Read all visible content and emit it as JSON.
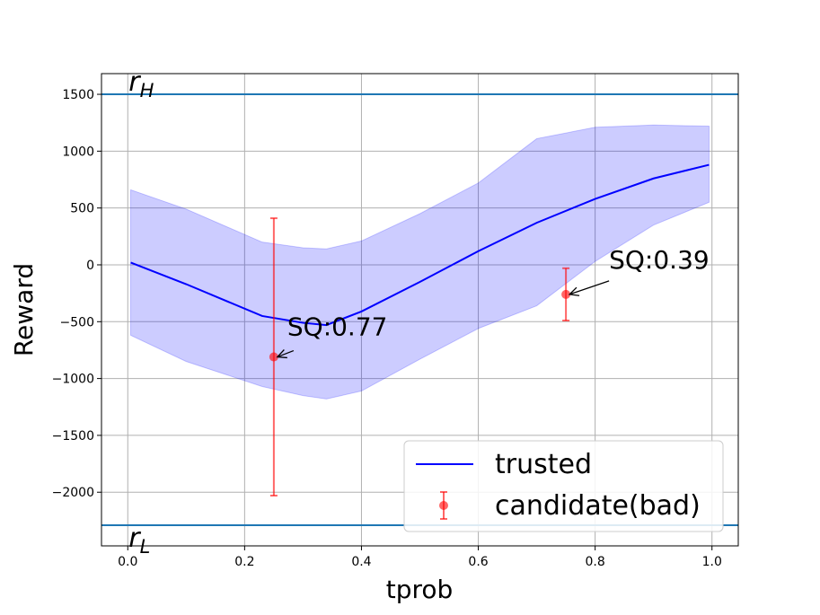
{
  "chart_data": {
    "type": "line",
    "xlabel": "tprob",
    "ylabel": "Reward",
    "xlim": [
      -0.045,
      1.045
    ],
    "ylim": [
      -2472,
      1682
    ],
    "xticks": [
      {
        "value": 0,
        "label": "0.0"
      },
      {
        "value": 0.2,
        "label": "0.2"
      },
      {
        "value": 0.4,
        "label": "0.4"
      },
      {
        "value": 0.6,
        "label": "0.6"
      },
      {
        "value": 0.8,
        "label": "0.8"
      },
      {
        "value": 1,
        "label": "1.0"
      }
    ],
    "yticks": [
      {
        "value": -2000,
        "label": "−2000"
      },
      {
        "value": -1500,
        "label": "−1500"
      },
      {
        "value": -1000,
        "label": "−1000"
      },
      {
        "value": -500,
        "label": "−500"
      },
      0,
      500,
      1000,
      1500
    ],
    "grid": true,
    "legend": "lower right",
    "hlines": [
      {
        "symbol": "r",
        "subscript": "H",
        "value": 1500,
        "color": "#1f77b4"
      },
      {
        "symbol": "r",
        "subscript": "L",
        "value": -2290,
        "color": "#1f77b4"
      }
    ],
    "series": [
      {
        "name": "trusted",
        "type": "line",
        "color": "#0000ff",
        "x": [
          0.005,
          0.1,
          0.23,
          0.3,
          0.34,
          0.4,
          0.5,
          0.6,
          0.7,
          0.8,
          0.9,
          0.995
        ],
        "values": [
          20,
          -170,
          -450,
          -510,
          -530,
          -410,
          -150,
          120,
          370,
          580,
          760,
          880
        ],
        "band_upper": [
          660,
          490,
          200,
          150,
          140,
          210,
          450,
          720,
          1110,
          1210,
          1230,
          1220
        ],
        "band_lower": [
          -620,
          -850,
          -1070,
          -1150,
          -1180,
          -1110,
          -830,
          -560,
          -360,
          30,
          350,
          550
        ]
      },
      {
        "name": "candidate(bad)",
        "type": "errorbar",
        "color": "#ff0000",
        "x": [
          0.25,
          0.75
        ],
        "values": [
          -810,
          -260
        ],
        "errors": [
          1220,
          230
        ],
        "point_labels": [
          "SQ:0.77",
          "SQ:0.39"
        ]
      }
    ]
  }
}
